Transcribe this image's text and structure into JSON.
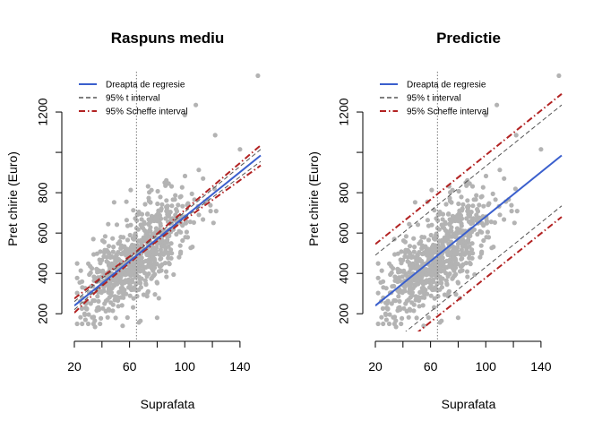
{
  "colors": {
    "points": "#b3b3b3",
    "regression": "#3a5fcd",
    "t_interval": "#555555",
    "scheffe": "#b22222",
    "mean_line": "#777777"
  },
  "legend": [
    {
      "label": "Dreapta de regresie",
      "style": "solid"
    },
    {
      "label": "95% t interval",
      "style": "dashed"
    },
    {
      "label": "95% Scheffe interval",
      "style": "dotdash"
    }
  ],
  "chart_data": [
    {
      "type": "scatter",
      "title": "Raspuns mediu",
      "xlabel": "Suprafata",
      "ylabel": "Pret chirie (Euro)",
      "xlim": [
        20,
        155
      ],
      "ylim": [
        130,
        1400
      ],
      "xticks": [
        20,
        60,
        100,
        140
      ],
      "yticks": [
        200,
        400,
        600,
        800,
        1200
      ],
      "mean_x": 65,
      "regression": {
        "x": [
          20,
          155
        ],
        "y": [
          240,
          985
        ]
      },
      "t_interval": {
        "x": [
          20,
          40,
          65,
          100,
          155
        ],
        "lower": [
          220,
          345,
          486,
          675,
          955
        ],
        "upper": [
          260,
          375,
          504,
          705,
          1015
        ]
      },
      "scheffe_interval": {
        "x": [
          20,
          40,
          65,
          100,
          155
        ],
        "lower": [
          205,
          338,
          481,
          666,
          935
        ],
        "upper": [
          275,
          382,
          509,
          714,
          1035
        ]
      },
      "points": {
        "seed": 7,
        "n": 700,
        "x_mean": 65,
        "x_sd": 22,
        "slope": 5.52,
        "intercept": 130,
        "resid_sd": 120
      },
      "outliers": [
        [
          153,
          1380
        ],
        [
          108,
          1235
        ],
        [
          100,
          1185
        ],
        [
          122,
          1085
        ],
        [
          140,
          1015
        ],
        [
          80,
          180
        ],
        [
          55,
          140
        ],
        [
          35,
          135
        ]
      ]
    },
    {
      "type": "scatter",
      "title": "Predictie",
      "xlabel": "Suprafata",
      "ylabel": "Pret chirie (Euro)",
      "xlim": [
        20,
        155
      ],
      "ylim": [
        130,
        1400
      ],
      "xticks": [
        20,
        60,
        100,
        140
      ],
      "yticks": [
        200,
        400,
        600,
        800,
        1200
      ],
      "mean_x": 65,
      "regression": {
        "x": [
          20,
          155
        ],
        "y": [
          240,
          985
        ]
      },
      "t_interval": {
        "x": [
          20,
          155
        ],
        "lower": [
          -10,
          735
        ],
        "upper": [
          490,
          1235
        ]
      },
      "scheffe_interval": {
        "x": [
          20,
          155
        ],
        "lower": [
          -60,
          680
        ],
        "upper": [
          545,
          1290
        ]
      },
      "points": {
        "seed": 7,
        "n": 700,
        "x_mean": 65,
        "x_sd": 22,
        "slope": 5.52,
        "intercept": 130,
        "resid_sd": 120
      },
      "outliers": [
        [
          153,
          1380
        ],
        [
          108,
          1235
        ],
        [
          100,
          1185
        ],
        [
          122,
          1085
        ],
        [
          140,
          1015
        ],
        [
          80,
          180
        ],
        [
          55,
          140
        ],
        [
          35,
          135
        ]
      ]
    }
  ]
}
